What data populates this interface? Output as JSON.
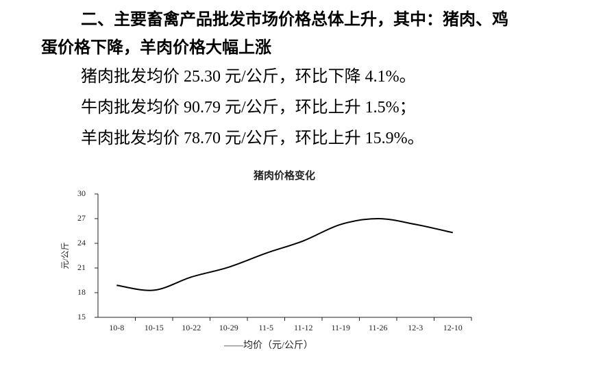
{
  "heading": "二、主要畜禽产品批发市场价格总体上升，其中：猪肉、鸡蛋价格下降，羊肉价格大幅上涨",
  "paragraphs": [
    "猪肉批发均价 25.30 元/公斤，环比下降 4.1%。",
    "牛肉批发均价 90.79 元/公斤，环比上升 1.5%；",
    "羊肉批发均价 78.70 元/公斤，环比上升 15.9%。"
  ],
  "chart_data": {
    "type": "line",
    "title": "猪肉价格变化",
    "y_label": "元/公斤",
    "categories": [
      "10-8",
      "10-15",
      "10-22",
      "10-29",
      "11-5",
      "11-12",
      "11-19",
      "11-26",
      "12-3",
      "12-10"
    ],
    "series": [
      {
        "name": "——均价（元/公斤）",
        "color": "#000000",
        "values": [
          18.9,
          18.3,
          19.9,
          21.1,
          22.8,
          24.3,
          26.3,
          27.0,
          26.3,
          25.3
        ]
      }
    ],
    "ylim": [
      15,
      30
    ],
    "yticks": [
      15,
      18,
      21,
      24,
      27,
      30
    ],
    "grid": false
  }
}
